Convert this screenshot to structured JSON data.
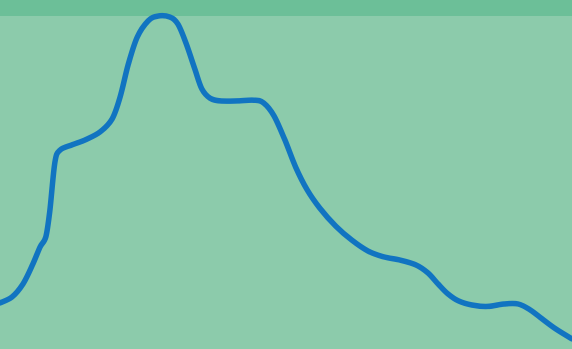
{
  "colors": {
    "background": "#8ccbab",
    "top_band": "#6cbf98",
    "line": "#1174c1"
  },
  "chart_data": {
    "type": "line",
    "title": "",
    "xlabel": "",
    "ylabel": "",
    "grid": false,
    "legend": "none",
    "xlim": [
      0,
      100
    ],
    "ylim": [
      0,
      100
    ],
    "series": [
      {
        "values": [
          [
            0,
            13.2
          ],
          [
            2.1,
            14.9
          ],
          [
            4.0,
            18.6
          ],
          [
            5.6,
            23.8
          ],
          [
            7.0,
            29.2
          ],
          [
            8.0,
            32.1
          ],
          [
            8.7,
            39.5
          ],
          [
            9.6,
            53.5
          ],
          [
            10.5,
            57.0
          ],
          [
            12.6,
            58.5
          ],
          [
            15.0,
            60.0
          ],
          [
            17.5,
            62.2
          ],
          [
            19.6,
            65.9
          ],
          [
            21.0,
            72.2
          ],
          [
            22.4,
            81.4
          ],
          [
            24.0,
            89.4
          ],
          [
            25.9,
            94.0
          ],
          [
            27.6,
            95.4
          ],
          [
            29.7,
            95.1
          ],
          [
            31.1,
            93.1
          ],
          [
            32.5,
            87.7
          ],
          [
            34.1,
            80.0
          ],
          [
            35.3,
            74.5
          ],
          [
            36.7,
            71.9
          ],
          [
            38.5,
            71.1
          ],
          [
            41.6,
            71.1
          ],
          [
            44.4,
            71.3
          ],
          [
            46.1,
            70.5
          ],
          [
            47.9,
            66.8
          ],
          [
            49.8,
            59.9
          ],
          [
            51.7,
            52.1
          ],
          [
            53.7,
            45.6
          ],
          [
            55.9,
            40.4
          ],
          [
            58.7,
            35.2
          ],
          [
            61.5,
            31.2
          ],
          [
            64.3,
            28.1
          ],
          [
            67.1,
            26.4
          ],
          [
            69.9,
            25.5
          ],
          [
            72.7,
            24.1
          ],
          [
            74.8,
            21.8
          ],
          [
            76.6,
            18.6
          ],
          [
            78.3,
            15.8
          ],
          [
            80.1,
            13.8
          ],
          [
            82.5,
            12.6
          ],
          [
            85.3,
            12.2
          ],
          [
            88.1,
            12.9
          ],
          [
            90.6,
            12.9
          ],
          [
            92.7,
            11.2
          ],
          [
            94.8,
            8.6
          ],
          [
            97.2,
            5.7
          ],
          [
            100,
            2.9
          ]
        ]
      }
    ]
  }
}
